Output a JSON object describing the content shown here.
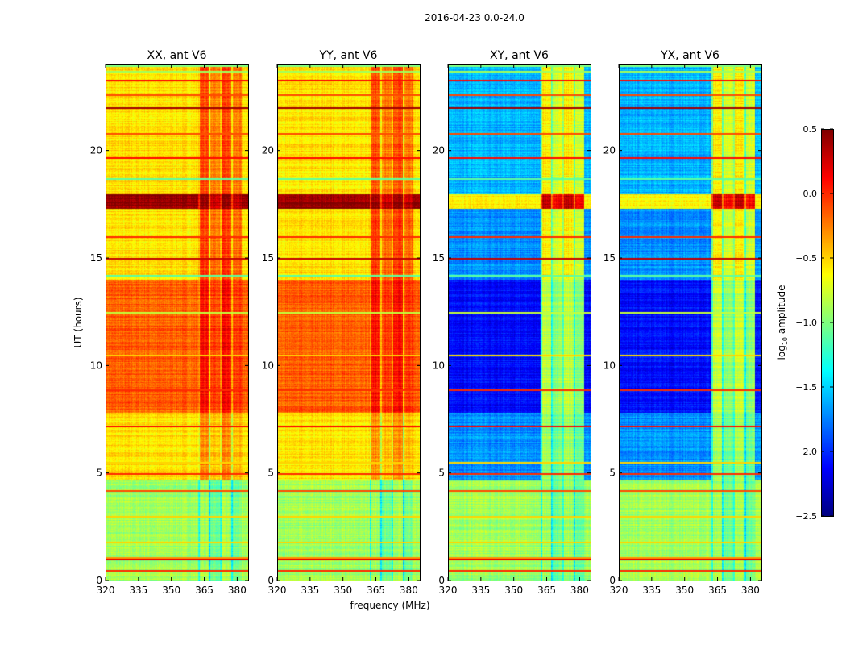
{
  "chart_data": {
    "type": "heatmap",
    "title": "2016-04-23 0.0-24.0",
    "xlabel": "frequency (MHz)",
    "ylabel": "UT (hours)",
    "xlim": [
      320,
      385
    ],
    "ylim": [
      0,
      24
    ],
    "xticks": [
      "320",
      "335",
      "350",
      "365",
      "380"
    ],
    "yticks": [
      "0",
      "5",
      "10",
      "15",
      "20"
    ],
    "colorbar": {
      "label_main": "log",
      "label_sub": "10",
      "label_rest": " amplitude",
      "range": [
        -2.5,
        0.5
      ],
      "ticks": [
        "0.5",
        "0.0",
        "−0.5",
        "−1.0",
        "−1.5",
        "−2.0",
        "−2.5"
      ],
      "colormap": "jet"
    },
    "band_mhz": [
      362,
      382
    ],
    "panels": [
      {
        "title": "XX, ant V6",
        "segments": [
          {
            "t": [
              0,
              4.7
            ],
            "base": -0.9,
            "band": -0.9
          },
          {
            "t": [
              4.7,
              7.8
            ],
            "base": -0.55,
            "band": -0.3
          },
          {
            "t": [
              7.8,
              14.0
            ],
            "base": -0.15,
            "band": 0.1
          },
          {
            "t": [
              14.0,
              17.3
            ],
            "base": -0.55,
            "band": -0.05
          },
          {
            "t": [
              17.3,
              18.0
            ],
            "base": 0.45,
            "band": 0.45
          },
          {
            "t": [
              18.0,
              24.0
            ],
            "base": -0.55,
            "band": -0.1
          }
        ]
      },
      {
        "title": "YY, ant V6",
        "segments": [
          {
            "t": [
              0,
              4.7
            ],
            "base": -0.9,
            "band": -0.9
          },
          {
            "t": [
              4.7,
              7.8
            ],
            "base": -0.55,
            "band": -0.3
          },
          {
            "t": [
              7.8,
              14.0
            ],
            "base": -0.15,
            "band": 0.1
          },
          {
            "t": [
              14.0,
              17.3
            ],
            "base": -0.55,
            "band": -0.05
          },
          {
            "t": [
              17.3,
              18.0
            ],
            "base": 0.45,
            "band": 0.45
          },
          {
            "t": [
              18.0,
              24.0
            ],
            "base": -0.55,
            "band": -0.1
          }
        ]
      },
      {
        "title": "XY, ant V6",
        "segments": [
          {
            "t": [
              0,
              4.7
            ],
            "base": -0.9,
            "band": -0.9
          },
          {
            "t": [
              4.7,
              7.8
            ],
            "base": -1.7,
            "band": -0.9
          },
          {
            "t": [
              7.8,
              14.0
            ],
            "base": -2.1,
            "band": -0.8
          },
          {
            "t": [
              14.0,
              17.3
            ],
            "base": -1.7,
            "band": -0.6
          },
          {
            "t": [
              17.3,
              18.0
            ],
            "base": -0.6,
            "band": 0.3
          },
          {
            "t": [
              18.0,
              24.0
            ],
            "base": -1.6,
            "band": -0.6
          }
        ]
      },
      {
        "title": "YX, ant V6",
        "segments": [
          {
            "t": [
              0,
              4.7
            ],
            "base": -0.9,
            "band": -0.9
          },
          {
            "t": [
              4.7,
              7.8
            ],
            "base": -1.7,
            "band": -0.9
          },
          {
            "t": [
              7.8,
              14.0
            ],
            "base": -2.1,
            "band": -0.8
          },
          {
            "t": [
              14.0,
              17.3
            ],
            "base": -1.7,
            "band": -0.6
          },
          {
            "t": [
              17.3,
              18.0
            ],
            "base": -0.6,
            "band": 0.3
          },
          {
            "t": [
              18.0,
              24.0
            ],
            "base": -1.6,
            "band": -0.6
          }
        ]
      }
    ],
    "flag_lines": [
      {
        "t": 0.5,
        "v": 0.0
      },
      {
        "t": 1.0,
        "v": 0.2
      },
      {
        "t": 1.1,
        "v": -0.3
      },
      {
        "t": 1.8,
        "v": -0.5
      },
      {
        "t": 3.0,
        "v": -0.5
      },
      {
        "t": 4.2,
        "v": -0.1
      },
      {
        "t": 5.0,
        "v": 0.0
      },
      {
        "t": 5.5,
        "v": -0.5
      },
      {
        "t": 7.2,
        "v": 0.1
      },
      {
        "t": 8.9,
        "v": 0.0
      },
      {
        "t": 10.5,
        "v": -0.5
      },
      {
        "t": 12.5,
        "v": -0.8
      },
      {
        "t": 14.2,
        "v": -1.1
      },
      {
        "t": 15.0,
        "v": 0.3
      },
      {
        "t": 16.0,
        "v": 0.0
      },
      {
        "t": 18.7,
        "v": -1.1
      },
      {
        "t": 19.7,
        "v": 0.1
      },
      {
        "t": 20.8,
        "v": -0.1
      },
      {
        "t": 22.0,
        "v": 0.4
      },
      {
        "t": 22.6,
        "v": -0.1
      },
      {
        "t": 23.3,
        "v": 0.1
      },
      {
        "t": 23.7,
        "v": -0.9
      }
    ]
  }
}
